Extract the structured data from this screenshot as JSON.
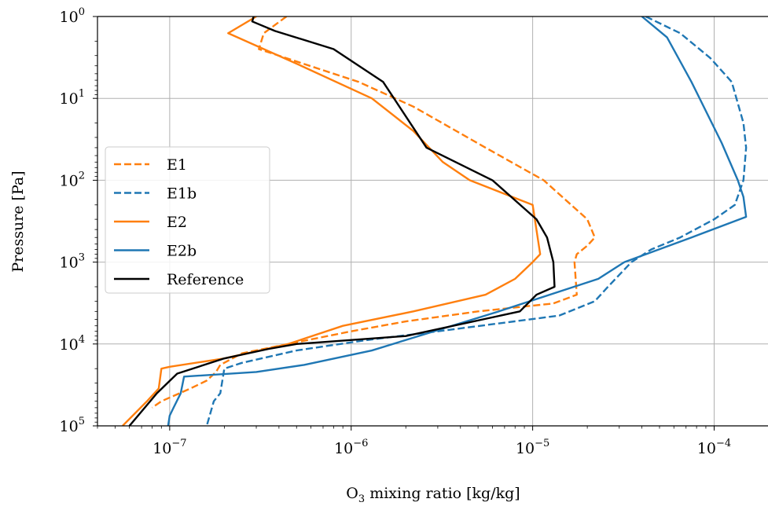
{
  "chart_data": {
    "type": "line",
    "xlabel": {
      "main": "O",
      "sub": "3",
      "rest": " mixing ratio [kg/kg]"
    },
    "ylabel": "Pressure [Pa]",
    "xscale": "log",
    "yscale": "log",
    "y_inverted": true,
    "xlim": [
      4e-08,
      0.0002
    ],
    "ylim": [
      1,
      100000
    ],
    "grid": true,
    "legend_position": "center-left",
    "x_ticks": [
      {
        "value": 1e-07,
        "base": "10",
        "exp": "−7"
      },
      {
        "value": 1e-06,
        "base": "10",
        "exp": "−6"
      },
      {
        "value": 1e-05,
        "base": "10",
        "exp": "−5"
      },
      {
        "value": 0.0001,
        "base": "10",
        "exp": "−4"
      }
    ],
    "y_ticks": [
      {
        "value": 1,
        "base": "10",
        "exp": "0"
      },
      {
        "value": 10,
        "base": "10",
        "exp": "1"
      },
      {
        "value": 100,
        "base": "10",
        "exp": "2"
      },
      {
        "value": 1000,
        "base": "10",
        "exp": "3"
      },
      {
        "value": 10000,
        "base": "10",
        "exp": "4"
      },
      {
        "value": 100000,
        "base": "10",
        "exp": "5"
      }
    ],
    "series": [
      {
        "name": "E1",
        "color": "#ff7f0e",
        "dash": true,
        "points": [
          [
            4.4e-07,
            1
          ],
          [
            3.3e-07,
            1.6
          ],
          [
            3.1e-07,
            2.5
          ],
          [
            1.1e-06,
            6.3
          ],
          [
            2.2e-06,
            12.6
          ],
          [
            5.5e-06,
            40
          ],
          [
            1.15e-05,
            100
          ],
          [
            2e-05,
            300
          ],
          [
            2.2e-05,
            500
          ],
          [
            2e-05,
            630
          ],
          [
            1.75e-05,
            800
          ],
          [
            1.7e-05,
            1000
          ],
          [
            1.75e-05,
            2500
          ],
          [
            1.3e-05,
            3200
          ],
          [
            5e-06,
            4000
          ],
          [
            2e-06,
            5300
          ],
          [
            1e-06,
            7000
          ],
          [
            4.5e-07,
            10000
          ],
          [
            2.5e-07,
            13000
          ],
          [
            1.9e-07,
            18000
          ],
          [
            1.8e-07,
            22000
          ],
          [
            1.6e-07,
            28000
          ],
          [
            1.3e-07,
            35000
          ],
          [
            9e-08,
            50000
          ],
          [
            8e-08,
            60000
          ]
        ]
      },
      {
        "name": "E1b",
        "color": "#1f77b4",
        "dash": true,
        "points": [
          [
            4.2e-05,
            1
          ],
          [
            6.5e-05,
            1.6
          ],
          [
            9.5e-05,
            3.2
          ],
          [
            0.000125,
            6.3
          ],
          [
            0.000145,
            20
          ],
          [
            0.00015,
            40
          ],
          [
            0.000145,
            100
          ],
          [
            0.00013,
            200
          ],
          [
            0.0001,
            300
          ],
          [
            6.5e-05,
            500
          ],
          [
            4.5e-05,
            700
          ],
          [
            3.5e-05,
            1000
          ],
          [
            2.6e-05,
            2000
          ],
          [
            2.2e-05,
            3000
          ],
          [
            1.4e-05,
            4500
          ],
          [
            3e-06,
            7000
          ],
          [
            1.2e-06,
            9000
          ],
          [
            5e-07,
            12000
          ],
          [
            2.5e-07,
            17000
          ],
          [
            2e-07,
            20000
          ],
          [
            1.9e-07,
            40000
          ],
          [
            1.75e-07,
            50000
          ],
          [
            1.6e-07,
            100000
          ]
        ]
      },
      {
        "name": "E2",
        "color": "#ff7f0e",
        "dash": false,
        "points": [
          [
            3e-07,
            1
          ],
          [
            2.1e-07,
            1.6
          ],
          [
            5.3e-07,
            4
          ],
          [
            1.3e-06,
            10
          ],
          [
            2.2e-06,
            25
          ],
          [
            3.2e-06,
            60
          ],
          [
            4.5e-06,
            100
          ],
          [
            1e-05,
            200
          ],
          [
            1.1e-05,
            800
          ],
          [
            1e-05,
            1000
          ],
          [
            8e-06,
            1600
          ],
          [
            5.5e-06,
            2500
          ],
          [
            2.2e-06,
            4000
          ],
          [
            9e-07,
            6000
          ],
          [
            4.5e-07,
            10000
          ],
          [
            2e-07,
            15000
          ],
          [
            1e-07,
            19000
          ],
          [
            9e-08,
            20000
          ],
          [
            8.7e-08,
            35000
          ],
          [
            7.5e-08,
            50000
          ],
          [
            5.5e-08,
            100000
          ]
        ]
      },
      {
        "name": "E2b",
        "color": "#1f77b4",
        "dash": false,
        "points": [
          [
            4e-05,
            1
          ],
          [
            5.5e-05,
            1.8
          ],
          [
            7.5e-05,
            6.3
          ],
          [
            0.00011,
            35
          ],
          [
            0.000135,
            100
          ],
          [
            0.000145,
            160
          ],
          [
            0.00015,
            280
          ],
          [
            7.5e-05,
            500
          ],
          [
            3.2e-05,
            1000
          ],
          [
            2.3e-05,
            1600
          ],
          [
            6.5e-06,
            4000
          ],
          [
            1.3e-06,
            12000
          ],
          [
            5.5e-07,
            18000
          ],
          [
            3e-07,
            22000
          ],
          [
            1.2e-07,
            25000
          ],
          [
            1.15e-07,
            40000
          ],
          [
            1.05e-07,
            60000
          ],
          [
            1e-07,
            75000
          ],
          [
            9.8e-08,
            100000
          ]
        ]
      },
      {
        "name": "Reference",
        "color": "#000000",
        "dash": false,
        "points": [
          [
            2.9e-07,
            1
          ],
          [
            2.85e-07,
            1.15
          ],
          [
            3.8e-07,
            1.5
          ],
          [
            8e-07,
            2.5
          ],
          [
            1.5e-06,
            6.3
          ],
          [
            2.6e-06,
            40
          ],
          [
            6e-06,
            100
          ],
          [
            1.05e-05,
            300
          ],
          [
            1.2e-05,
            500
          ],
          [
            1.3e-05,
            1000
          ],
          [
            1.32e-05,
            2000
          ],
          [
            1.05e-05,
            2500
          ],
          [
            8.5e-06,
            4000
          ],
          [
            2e-06,
            8000
          ],
          [
            5e-07,
            10000
          ],
          [
            3.5e-07,
            11500
          ],
          [
            2e-07,
            15000
          ],
          [
            1.1e-07,
            23000
          ],
          [
            8.5e-08,
            40000
          ],
          [
            6e-08,
            100000
          ]
        ]
      }
    ]
  }
}
